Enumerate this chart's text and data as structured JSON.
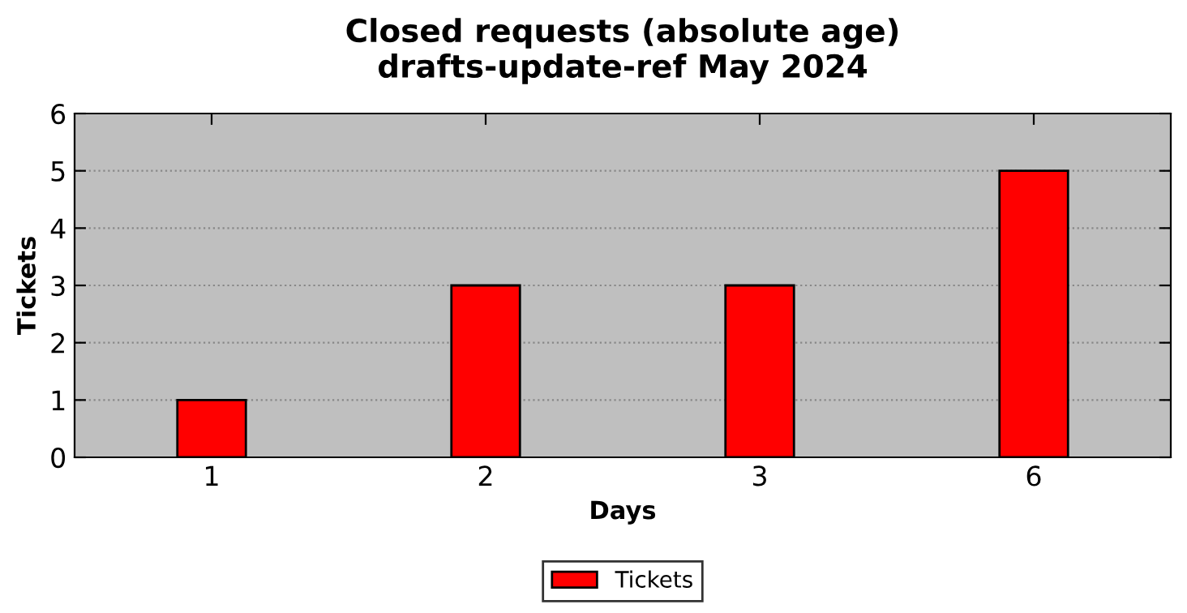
{
  "chart_data": {
    "type": "bar",
    "title": "Closed requests (absolute age)\ndrafts-update-ref May 2024",
    "xlabel": "Days",
    "ylabel": "Tickets",
    "categories": [
      "1",
      "2",
      "3",
      "6"
    ],
    "series": [
      {
        "name": "Tickets",
        "color": "#ff0000",
        "values": [
          1,
          3,
          3,
          5
        ]
      }
    ],
    "ylim": [
      0,
      6
    ],
    "yticks": [
      0,
      1,
      2,
      3,
      4,
      5,
      6
    ],
    "grid": "y",
    "legend": "bottom"
  }
}
